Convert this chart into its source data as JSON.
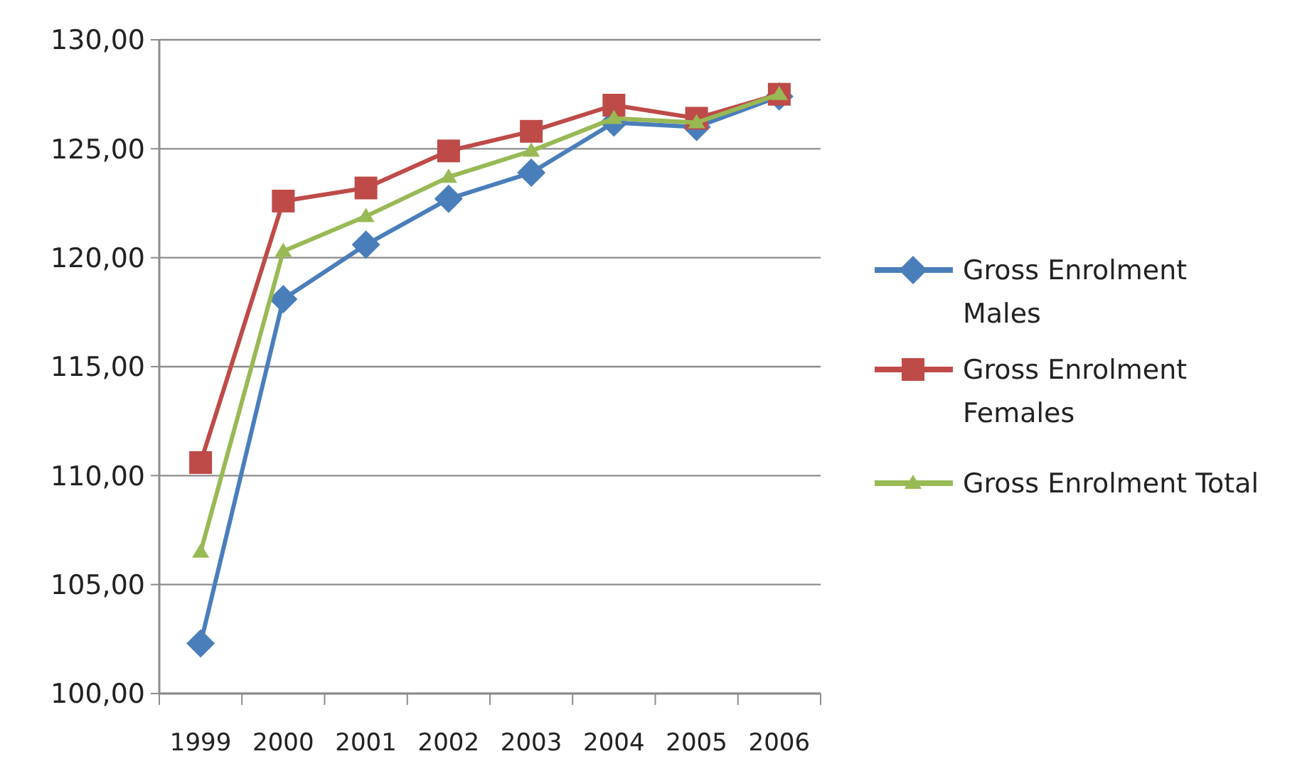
{
  "chart_data": {
    "type": "line",
    "categories": [
      "1999",
      "2000",
      "2001",
      "2002",
      "2003",
      "2004",
      "2005",
      "2006"
    ],
    "ylim": [
      100,
      130
    ],
    "yticks": [
      {
        "value": 100,
        "label": "100,00"
      },
      {
        "value": 105,
        "label": "105,00"
      },
      {
        "value": 110,
        "label": "110,00"
      },
      {
        "value": 115,
        "label": "115,00"
      },
      {
        "value": 120,
        "label": "120,00"
      },
      {
        "value": 125,
        "label": "125,00"
      },
      {
        "value": 130,
        "label": "130,00"
      }
    ],
    "grid": "y",
    "legend": "right",
    "series": [
      {
        "name": "Gross Enrolment Males",
        "color": "#4a7ebb",
        "marker": "diamond",
        "values": [
          102.3,
          118.1,
          120.6,
          122.7,
          123.9,
          126.2,
          126.0,
          127.4
        ]
      },
      {
        "name": "Gross Enrolment Females",
        "color": "#be4b48",
        "marker": "square",
        "values": [
          110.6,
          122.6,
          123.2,
          124.9,
          125.8,
          127.0,
          126.4,
          127.5
        ]
      },
      {
        "name": "Gross Enrolment Total",
        "color": "#98b954",
        "marker": "triangle",
        "values": [
          106.5,
          120.3,
          121.9,
          123.7,
          124.9,
          126.4,
          126.2,
          127.5
        ]
      }
    ]
  }
}
